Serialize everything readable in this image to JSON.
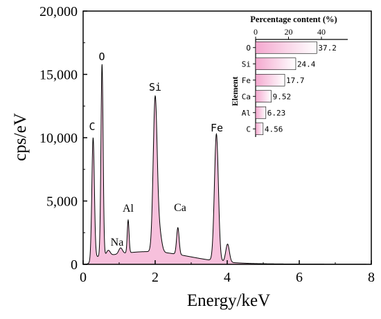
{
  "chart_data": [
    {
      "type": "area",
      "xlabel": "Energy/keV",
      "ylabel": "cps/eV",
      "xlim": [
        0,
        8
      ],
      "ylim": [
        0,
        20000
      ],
      "xticks": [
        "0",
        "2",
        "4",
        "6",
        "8"
      ],
      "yticks": [
        "0",
        "5,000",
        "10,000",
        "15,000",
        "20,000"
      ],
      "fill_color": "#f7c0dc",
      "line_color": "#000000",
      "peaks": [
        {
          "label": "C",
          "energy": 0.277,
          "cps": 10000
        },
        {
          "label": "O",
          "energy": 0.525,
          "cps": 15800
        },
        {
          "label": "Na",
          "energy": 1.04,
          "cps": 1300
        },
        {
          "label": "Al",
          "energy": 1.25,
          "cps": 3500
        },
        {
          "label": "Si",
          "energy": 2.0,
          "cps": 13100
        },
        {
          "label": "Ca",
          "energy": 2.63,
          "cps": 2900
        },
        {
          "label": "Fe",
          "energy": 3.7,
          "cps": 10300
        },
        {
          "label": "",
          "energy": 4.01,
          "cps": 1600
        }
      ]
    },
    {
      "type": "bar",
      "orientation": "horizontal",
      "title": "Percentage content (%)",
      "ylabel": "Element",
      "xlim": [
        0,
        56
      ],
      "xticks": [
        "0",
        "20",
        "40"
      ],
      "categories": [
        "O",
        "Si",
        "Fe",
        "Ca",
        "Al",
        "C"
      ],
      "values": [
        37.2,
        24.4,
        17.7,
        9.52,
        6.23,
        4.56
      ],
      "value_labels": [
        "37.2",
        "24.4",
        "17.7",
        "9.52",
        "6.23",
        "4.56"
      ],
      "bar_color_start": "#f4a8cf",
      "bar_color_end": "#ffffff"
    }
  ]
}
